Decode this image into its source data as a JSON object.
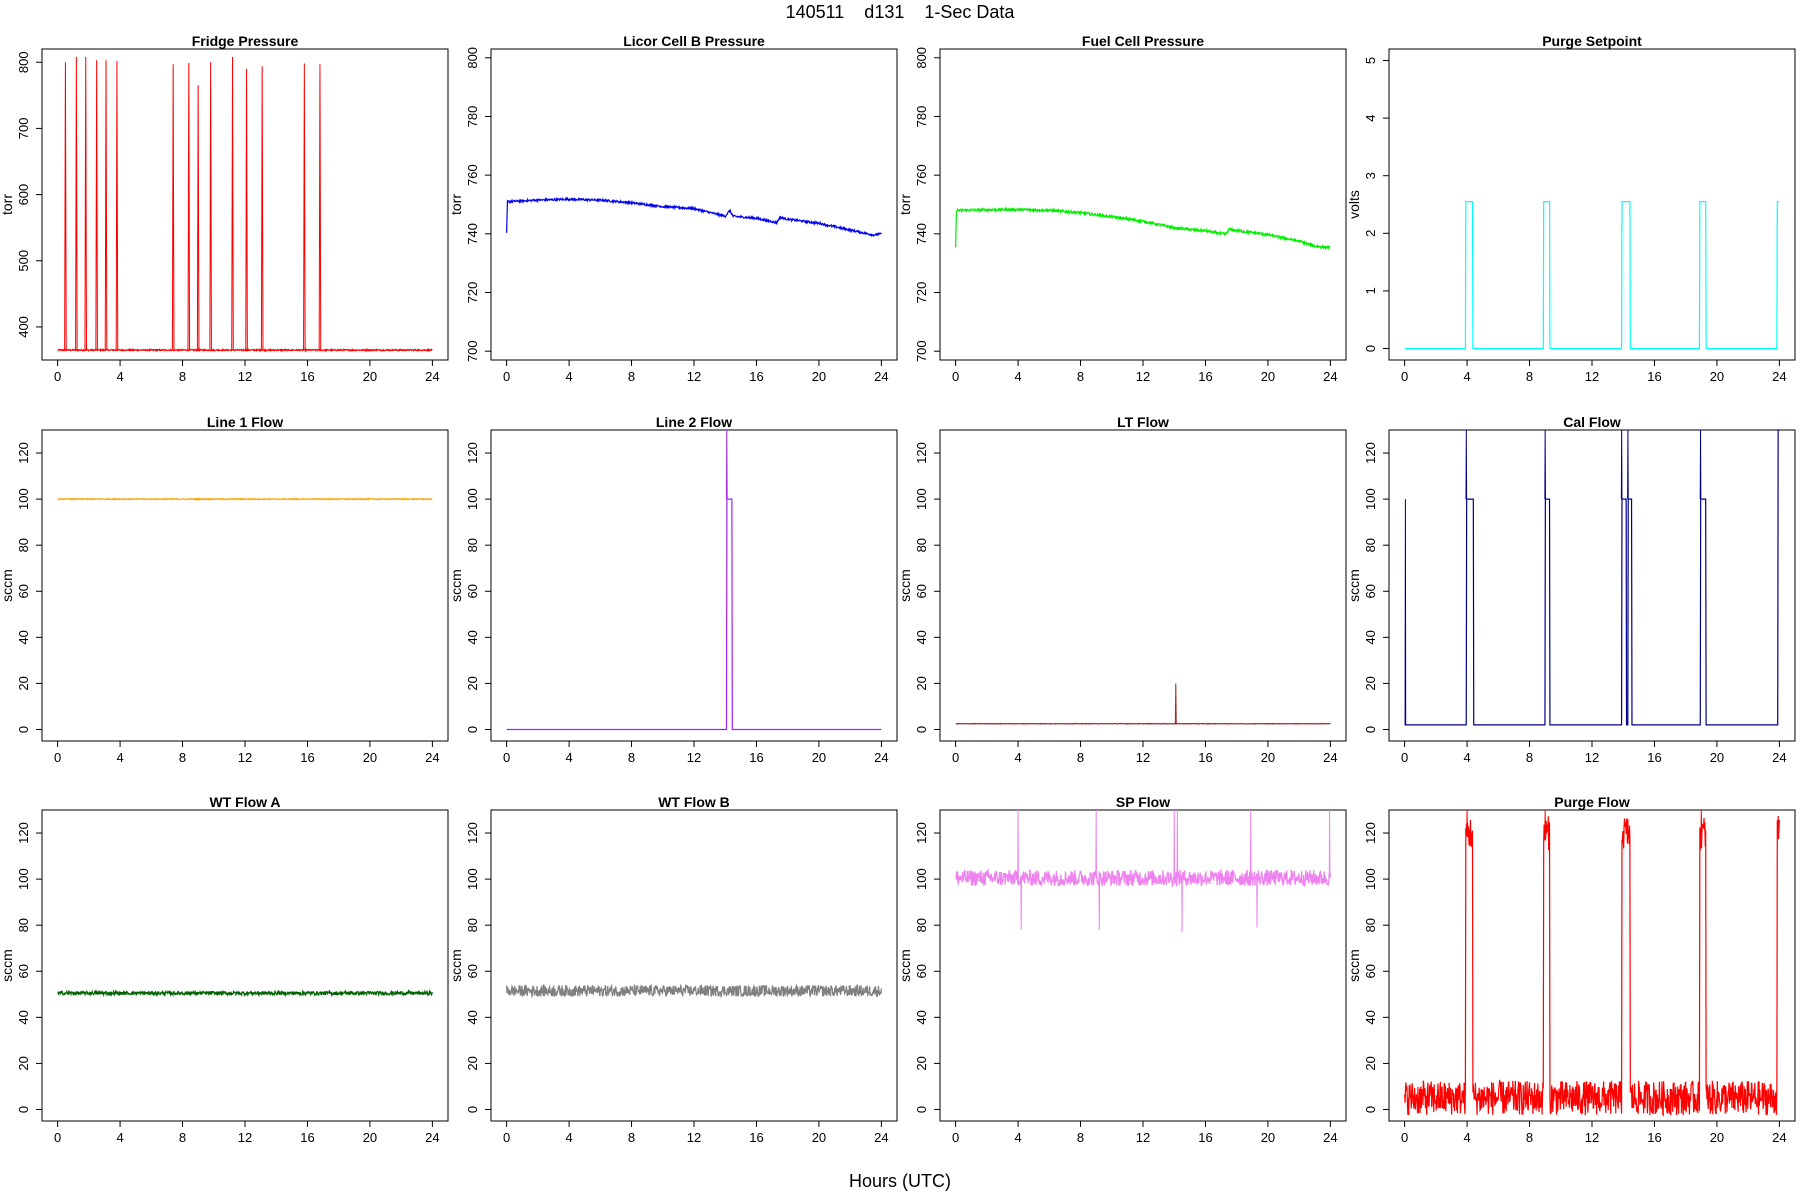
{
  "page": {
    "title": "140511    d131    1-Sec Data",
    "x_caption": "Hours (UTC)"
  },
  "chart_data": [
    {
      "type": "line",
      "title": "Fridge Pressure",
      "xlabel": "",
      "ylabel": "torr",
      "xlim": [
        -1,
        25
      ],
      "ylim": [
        350,
        820
      ],
      "xticks": [
        0,
        4,
        8,
        12,
        16,
        20,
        24
      ],
      "yticks": [
        400,
        500,
        600,
        700,
        800
      ],
      "color": "#ff0000",
      "baseline": 365,
      "noise": 1,
      "spikes": [
        [
          0.5,
          800
        ],
        [
          1.2,
          808
        ],
        [
          1.8,
          808
        ],
        [
          2.5,
          803
        ],
        [
          3.1,
          803
        ],
        [
          3.8,
          802
        ],
        [
          7.4,
          797
        ],
        [
          8.4,
          799
        ],
        [
          9.0,
          765
        ],
        [
          9.8,
          800
        ],
        [
          11.2,
          808
        ],
        [
          12.1,
          790
        ],
        [
          13.1,
          794
        ],
        [
          15.8,
          798
        ],
        [
          16.8,
          797
        ]
      ],
      "spike_width": 0.05,
      "x_end": 24
    },
    {
      "type": "line",
      "title": "Licor Cell B Pressure",
      "xlabel": "",
      "ylabel": "torr",
      "xlim": [
        -1,
        25
      ],
      "ylim": [
        697,
        803
      ],
      "xticks": [
        0,
        4,
        8,
        12,
        16,
        20,
        24
      ],
      "yticks": [
        700,
        720,
        740,
        760,
        780,
        800
      ],
      "color": "#0000ee",
      "noise": 0.35,
      "x": [
        0,
        0.05,
        2,
        4,
        6,
        8,
        10,
        12,
        14,
        14.3,
        14.5,
        16,
        17.3,
        17.5,
        18,
        20,
        22,
        23.5,
        24
      ],
      "y": [
        740,
        751,
        751.5,
        751.8,
        751.5,
        750.6,
        749.3,
        748.6,
        746,
        748,
        746,
        745.3,
        743.8,
        745.6,
        745,
        743.6,
        741.3,
        739.6,
        740
      ]
    },
    {
      "type": "line",
      "title": "Fuel Cell Pressure",
      "xlabel": "",
      "ylabel": "torr",
      "xlim": [
        -1,
        25
      ],
      "ylim": [
        697,
        803
      ],
      "xticks": [
        0,
        4,
        8,
        12,
        16,
        20,
        24
      ],
      "yticks": [
        700,
        720,
        740,
        760,
        780,
        800
      ],
      "color": "#00ee00",
      "noise": 0.45,
      "x": [
        0,
        0.05,
        2,
        4,
        6,
        8,
        10,
        12,
        14,
        16,
        17.3,
        17.5,
        20,
        22,
        23,
        24
      ],
      "y": [
        735,
        748,
        748.2,
        748.3,
        748,
        747.2,
        745.8,
        744.3,
        742,
        741,
        739.8,
        741.5,
        739.7,
        737.5,
        735.8,
        735.3
      ]
    },
    {
      "type": "line",
      "title": "Purge Setpoint",
      "xlabel": "",
      "ylabel": "volts",
      "xlim": [
        -1,
        25
      ],
      "ylim": [
        -0.2,
        5.2
      ],
      "xticks": [
        0,
        4,
        8,
        12,
        16,
        20,
        24
      ],
      "yticks": [
        0,
        1,
        2,
        3,
        4,
        5
      ],
      "color": "#00ffff",
      "baseline": 0,
      "noise": 0,
      "pulses": [
        [
          3.9,
          4.35,
          2.55
        ],
        [
          8.9,
          9.3,
          2.55
        ],
        [
          13.9,
          14.45,
          2.55
        ],
        [
          18.9,
          19.3,
          2.55
        ],
        [
          23.85,
          24,
          2.55
        ]
      ],
      "x_end": 24
    },
    {
      "type": "line",
      "title": "Line 1 Flow",
      "xlabel": "",
      "ylabel": "sccm",
      "xlim": [
        -1,
        25
      ],
      "ylim": [
        -5,
        130
      ],
      "xticks": [
        0,
        4,
        8,
        12,
        16,
        20,
        24
      ],
      "yticks": [
        0,
        20,
        40,
        60,
        80,
        100,
        120
      ],
      "color": "#ffa500",
      "baseline": 100,
      "noise": 0.2,
      "x_end": 24
    },
    {
      "type": "line",
      "title": "Line 2 Flow",
      "xlabel": "",
      "ylabel": "sccm",
      "xlim": [
        -1,
        25
      ],
      "ylim": [
        -5,
        130
      ],
      "xticks": [
        0,
        4,
        8,
        12,
        16,
        20,
        24
      ],
      "yticks": [
        0,
        20,
        40,
        60,
        80,
        100,
        120
      ],
      "color": "#a020f0",
      "baseline": 0,
      "noise": 0,
      "pulses": [
        [
          14.1,
          14.45,
          100
        ]
      ],
      "spikes": [
        [
          14.1,
          130
        ]
      ],
      "spike_width": 0.02,
      "x_end": 24
    },
    {
      "type": "line",
      "title": "LT Flow",
      "xlabel": "",
      "ylabel": "sccm",
      "xlim": [
        -1,
        25
      ],
      "ylim": [
        -5,
        130
      ],
      "xticks": [
        0,
        4,
        8,
        12,
        16,
        20,
        24
      ],
      "yticks": [
        0,
        20,
        40,
        60,
        80,
        100,
        120
      ],
      "color": "#a52a2a",
      "baseline": 2.5,
      "noise": 0.1,
      "spikes": [
        [
          14.1,
          20
        ]
      ],
      "spike_width": 0.03,
      "x_end": 24
    },
    {
      "type": "line",
      "title": "Cal Flow",
      "xlabel": "",
      "ylabel": "sccm",
      "xlim": [
        -1,
        25
      ],
      "ylim": [
        -5,
        130
      ],
      "xticks": [
        0,
        4,
        8,
        12,
        16,
        20,
        24
      ],
      "yticks": [
        0,
        20,
        40,
        60,
        80,
        100,
        120
      ],
      "color": "#00008b",
      "baseline": 2,
      "noise": 0,
      "pulses": [
        [
          3.95,
          4.4,
          100
        ],
        [
          9.0,
          9.3,
          100
        ],
        [
          13.9,
          14.2,
          100
        ],
        [
          14.3,
          14.55,
          100
        ],
        [
          18.95,
          19.3,
          100
        ],
        [
          23.9,
          24,
          130
        ]
      ],
      "spikes": [
        [
          0.05,
          100
        ],
        [
          3.95,
          130
        ],
        [
          9.0,
          130
        ],
        [
          13.9,
          130
        ],
        [
          14.3,
          130
        ],
        [
          18.95,
          130
        ]
      ],
      "spike_width": 0.02,
      "x_end": 24
    },
    {
      "type": "line",
      "title": "WT Flow A",
      "xlabel": "",
      "ylabel": "sccm",
      "xlim": [
        -1,
        25
      ],
      "ylim": [
        -5,
        130
      ],
      "xticks": [
        0,
        4,
        8,
        12,
        16,
        20,
        24
      ],
      "yticks": [
        0,
        20,
        40,
        60,
        80,
        100,
        120
      ],
      "color": "#006400",
      "baseline": 50.5,
      "noise": 0.8,
      "x_end": 24
    },
    {
      "type": "line",
      "title": "WT Flow B",
      "xlabel": "",
      "ylabel": "sccm",
      "xlim": [
        -1,
        25
      ],
      "ylim": [
        -5,
        130
      ],
      "xticks": [
        0,
        4,
        8,
        12,
        16,
        20,
        24
      ],
      "yticks": [
        0,
        20,
        40,
        60,
        80,
        100,
        120
      ],
      "color": "#808080",
      "baseline": 51.5,
      "noise": 2.5,
      "x_end": 24
    },
    {
      "type": "line",
      "title": "SP Flow",
      "xlabel": "",
      "ylabel": "sccm",
      "xlim": [
        -1,
        25
      ],
      "ylim": [
        -5,
        130
      ],
      "xticks": [
        0,
        4,
        8,
        12,
        16,
        20,
        24
      ],
      "yticks": [
        0,
        20,
        40,
        60,
        80,
        100,
        120
      ],
      "color": "#ee82ee",
      "baseline": 100.5,
      "noise": 3.5,
      "spikes": [
        [
          4.0,
          130
        ],
        [
          4.2,
          78
        ],
        [
          9.0,
          130
        ],
        [
          9.2,
          78
        ],
        [
          14.0,
          130
        ],
        [
          14.2,
          130
        ],
        [
          14.5,
          77
        ],
        [
          18.9,
          130
        ],
        [
          19.3,
          79
        ],
        [
          23.95,
          130
        ]
      ],
      "spike_width": 0.02,
      "x_end": 24
    },
    {
      "type": "line",
      "title": "Purge Flow",
      "xlabel": "",
      "ylabel": "sccm",
      "xlim": [
        -1,
        25
      ],
      "ylim": [
        -5,
        130
      ],
      "xticks": [
        0,
        4,
        8,
        12,
        16,
        20,
        24
      ],
      "yticks": [
        0,
        20,
        40,
        60,
        80,
        100,
        120
      ],
      "color": "#ff0000",
      "baseline": 5,
      "noise": 7.5,
      "pulses": [
        [
          3.9,
          4.35,
          120
        ],
        [
          8.9,
          9.3,
          120
        ],
        [
          13.9,
          14.45,
          120
        ],
        [
          18.9,
          19.3,
          120
        ],
        [
          23.85,
          24,
          120
        ]
      ],
      "spikes": [
        [
          4.0,
          130
        ],
        [
          9.0,
          130
        ],
        [
          19.0,
          130
        ]
      ],
      "spike_width": 0.02,
      "x_end": 24
    }
  ]
}
